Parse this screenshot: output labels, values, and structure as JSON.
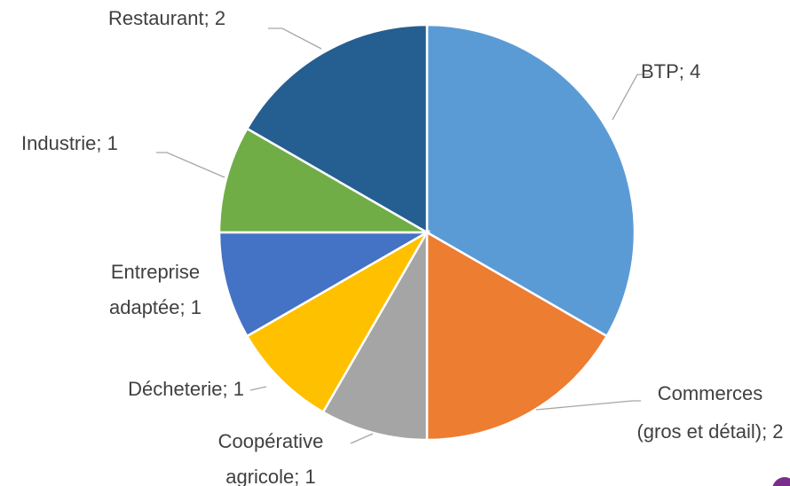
{
  "chart_data": {
    "type": "pie",
    "categories": [
      "BTP",
      "Commerces (gros et détail)",
      "Coopérative agricole",
      "Décheterie",
      "Entreprise adaptée",
      "Industrie",
      "Restaurant"
    ],
    "values": [
      4,
      2,
      1,
      1,
      1,
      1,
      2
    ],
    "colors": [
      "#5b9bd5",
      "#ed7d31",
      "#a5a5a5",
      "#ffc000",
      "#4472c4",
      "#70ad47",
      "#255e91"
    ],
    "label_separator": "; "
  }
}
